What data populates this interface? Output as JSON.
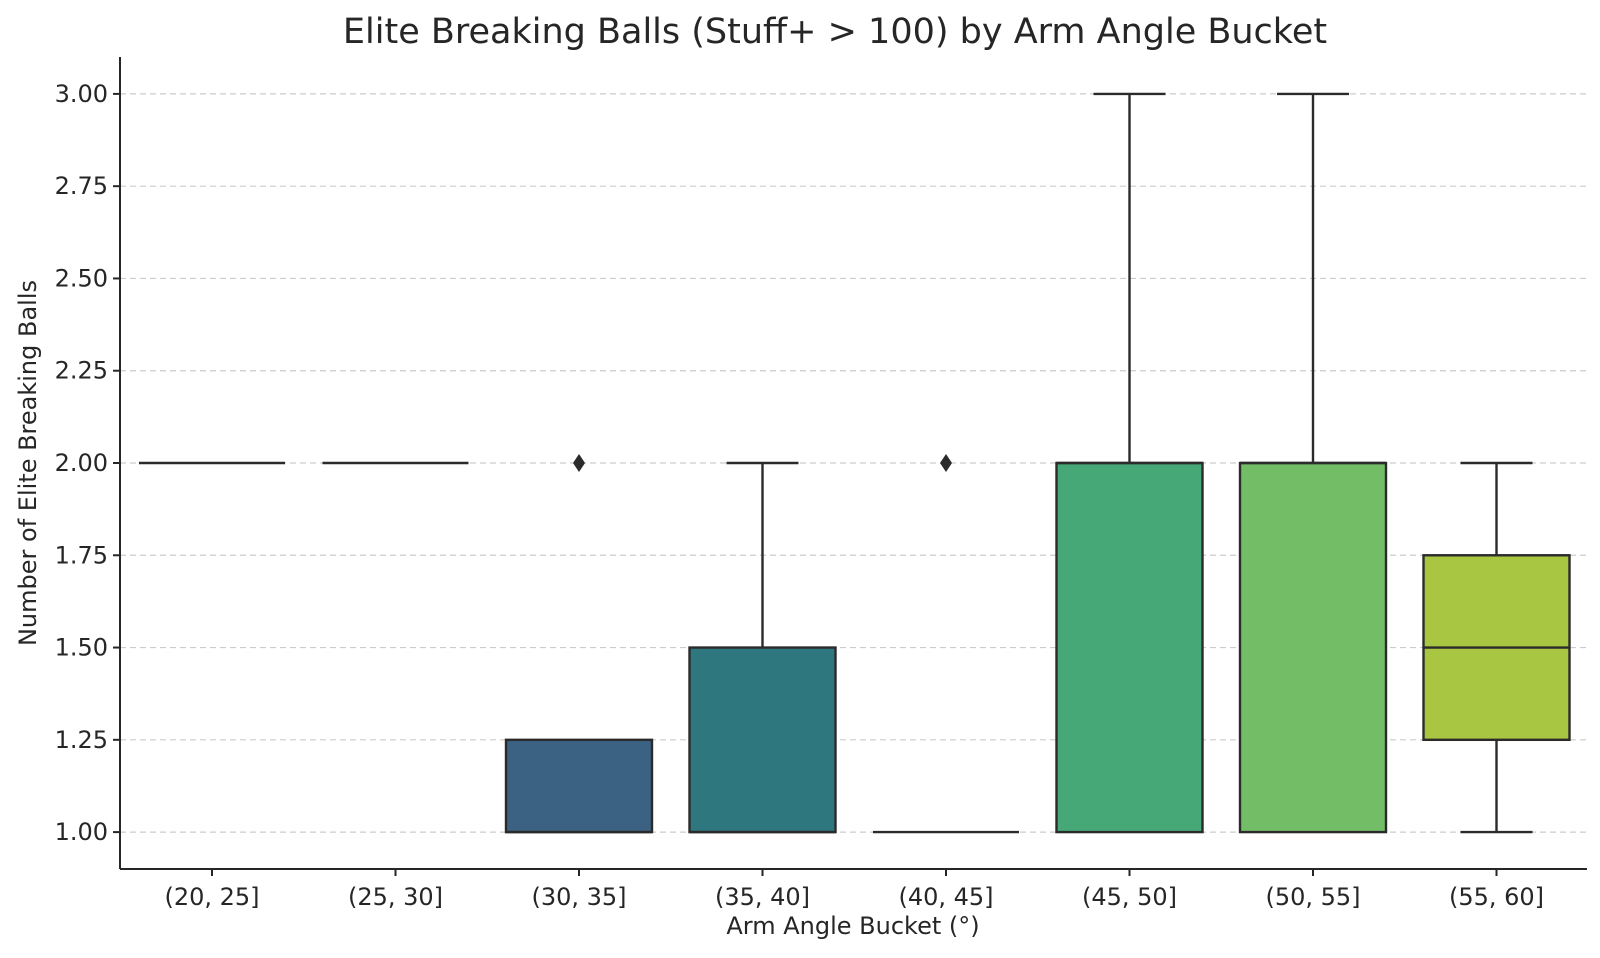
{
  "chart_data": {
    "type": "box",
    "title": "Elite Breaking Balls (Stuff+ > 100) by Arm Angle Bucket",
    "xlabel": "Arm Angle Bucket (°)",
    "ylabel": "Number of Elite Breaking Balls",
    "ylim": [
      0.9,
      3.1
    ],
    "yticks": [
      1.0,
      1.25,
      1.5,
      1.75,
      2.0,
      2.25,
      2.5,
      2.75,
      3.0
    ],
    "ytick_labels": [
      "1.00",
      "1.25",
      "1.50",
      "1.75",
      "2.00",
      "2.25",
      "2.50",
      "2.75",
      "3.00"
    ],
    "grid": "horizontal dashed",
    "categories": [
      "(20, 25]",
      "(25, 30]",
      "(30, 35]",
      "(35, 40]",
      "(40, 45]",
      "(45, 50]",
      "(50, 55]",
      "(55, 60]"
    ],
    "boxes": [
      {
        "category": "(20, 25]",
        "whislo": 2.0,
        "q1": 2.0,
        "med": 2.0,
        "q3": 2.0,
        "whishi": 2.0,
        "fliers": [],
        "color": "#440154"
      },
      {
        "category": "(25, 30]",
        "whislo": 2.0,
        "q1": 2.0,
        "med": 2.0,
        "q3": 2.0,
        "whishi": 2.0,
        "fliers": [],
        "color": "#46327e"
      },
      {
        "category": "(30, 35]",
        "whislo": 1.0,
        "q1": 1.0,
        "med": 1.0,
        "q3": 1.25,
        "whishi": 1.25,
        "fliers": [
          2.0
        ],
        "color": "#3b6283"
      },
      {
        "category": "(35, 40]",
        "whislo": 1.0,
        "q1": 1.0,
        "med": 1.0,
        "q3": 1.5,
        "whishi": 2.0,
        "fliers": [],
        "color": "#2f777f"
      },
      {
        "category": "(40, 45]",
        "whislo": 1.0,
        "q1": 1.0,
        "med": 1.0,
        "q3": 1.0,
        "whishi": 1.0,
        "fliers": [
          2.0
        ],
        "color": "#21918c"
      },
      {
        "category": "(45, 50]",
        "whislo": 1.0,
        "q1": 1.0,
        "med": 2.0,
        "q3": 2.0,
        "whishi": 3.0,
        "fliers": [],
        "color": "#46a877"
      },
      {
        "category": "(50, 55]",
        "whislo": 1.0,
        "q1": 1.0,
        "med": 2.0,
        "q3": 2.0,
        "whishi": 3.0,
        "fliers": [],
        "color": "#73bd67"
      },
      {
        "category": "(55, 60]",
        "whislo": 1.0,
        "q1": 1.25,
        "med": 1.5,
        "q3": 1.75,
        "whishi": 2.0,
        "fliers": [],
        "color": "#a8c642"
      }
    ]
  }
}
